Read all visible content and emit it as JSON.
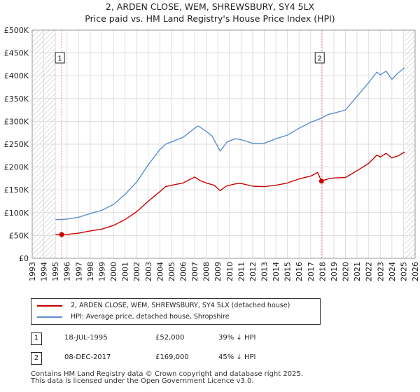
{
  "chart_data": {
    "type": "line",
    "title": "2, ARDEN CLOSE, WEM, SHREWSBURY, SY4 5LX",
    "subtitle": "Price paid vs. HM Land Registry's House Price Index (HPI)",
    "x_ticks": [
      "1993",
      "1994",
      "1995",
      "1996",
      "1997",
      "1998",
      "1999",
      "2000",
      "2001",
      "2002",
      "2003",
      "2004",
      "2005",
      "2006",
      "2007",
      "2008",
      "2009",
      "2010",
      "2011",
      "2012",
      "2013",
      "2014",
      "2015",
      "2016",
      "2017",
      "2018",
      "2019",
      "2020",
      "2021",
      "2022",
      "2023",
      "2024",
      "2025",
      "2026"
    ],
    "y_ticks": [
      "£0",
      "£50K",
      "£100K",
      "£150K",
      "£200K",
      "£250K",
      "£300K",
      "£350K",
      "£400K",
      "£450K",
      "£500K"
    ],
    "xlim": [
      1993,
      2026
    ],
    "ylim": [
      0,
      500000
    ],
    "hatched_ranges": [
      [
        1993,
        1995.0
      ],
      [
        2025.1,
        2026
      ]
    ],
    "series": [
      {
        "name": "2, ARDEN CLOSE, WEM, SHREWSBURY, SY4 5LX (detached house)",
        "color": "#cc0000",
        "points": [
          [
            1995.0,
            52000
          ],
          [
            1995.54,
            52000
          ],
          [
            1996.0,
            52500
          ],
          [
            1997.0,
            55000
          ],
          [
            1998.0,
            60000
          ],
          [
            1999.0,
            64000
          ],
          [
            2000.0,
            72000
          ],
          [
            2001.0,
            85000
          ],
          [
            2002.0,
            102000
          ],
          [
            2003.0,
            125000
          ],
          [
            2004.0,
            146000
          ],
          [
            2004.5,
            157000
          ],
          [
            2005.0,
            160000
          ],
          [
            2006.0,
            165000
          ],
          [
            2007.0,
            178000
          ],
          [
            2007.5,
            170000
          ],
          [
            2008.0,
            165000
          ],
          [
            2008.7,
            160000
          ],
          [
            2009.2,
            148000
          ],
          [
            2009.7,
            158000
          ],
          [
            2010.5,
            163000
          ],
          [
            2011.0,
            164000
          ],
          [
            2012.0,
            158000
          ],
          [
            2013.0,
            157000
          ],
          [
            2014.0,
            160000
          ],
          [
            2015.0,
            165000
          ],
          [
            2016.0,
            174000
          ],
          [
            2017.0,
            180000
          ],
          [
            2017.6,
            188000
          ],
          [
            2017.93,
            169000
          ],
          [
            2018.5,
            174000
          ],
          [
            2019.0,
            176000
          ],
          [
            2020.0,
            177000
          ],
          [
            2021.0,
            192000
          ],
          [
            2022.0,
            208000
          ],
          [
            2022.7,
            226000
          ],
          [
            2023.0,
            222000
          ],
          [
            2023.5,
            230000
          ],
          [
            2024.0,
            220000
          ],
          [
            2024.5,
            224000
          ],
          [
            2025.1,
            233000
          ]
        ]
      },
      {
        "name": "HPI: Average price, detached house, Shropshire",
        "color": "#5b8fd0",
        "points": [
          [
            1995.0,
            85000
          ],
          [
            1995.54,
            85000
          ],
          [
            1996.0,
            86000
          ],
          [
            1997.0,
            90000
          ],
          [
            1998.0,
            98000
          ],
          [
            1999.0,
            105000
          ],
          [
            2000.0,
            118000
          ],
          [
            2001.0,
            140000
          ],
          [
            2002.0,
            167000
          ],
          [
            2003.0,
            205000
          ],
          [
            2004.0,
            238000
          ],
          [
            2004.5,
            250000
          ],
          [
            2005.0,
            255000
          ],
          [
            2006.0,
            265000
          ],
          [
            2007.0,
            285000
          ],
          [
            2007.3,
            290000
          ],
          [
            2008.0,
            278000
          ],
          [
            2008.5,
            268000
          ],
          [
            2009.2,
            235000
          ],
          [
            2009.8,
            255000
          ],
          [
            2010.5,
            262000
          ],
          [
            2011.0,
            260000
          ],
          [
            2012.0,
            252000
          ],
          [
            2013.0,
            252000
          ],
          [
            2014.0,
            262000
          ],
          [
            2015.0,
            270000
          ],
          [
            2016.0,
            285000
          ],
          [
            2017.0,
            298000
          ],
          [
            2017.93,
            307000
          ],
          [
            2018.5,
            315000
          ],
          [
            2019.0,
            318000
          ],
          [
            2020.0,
            325000
          ],
          [
            2021.0,
            355000
          ],
          [
            2022.0,
            385000
          ],
          [
            2022.7,
            408000
          ],
          [
            2023.0,
            402000
          ],
          [
            2023.5,
            410000
          ],
          [
            2024.0,
            392000
          ],
          [
            2024.5,
            405000
          ],
          [
            2025.1,
            418000
          ]
        ]
      }
    ],
    "sales": [
      {
        "label": "1",
        "x": 1995.54,
        "y": 52000
      },
      {
        "label": "2",
        "x": 2017.93,
        "y": 169000
      }
    ]
  },
  "legend": {
    "series1": "2, ARDEN CLOSE, WEM, SHREWSBURY, SY4 5LX (detached house)",
    "series2": "HPI: Average price, detached house, Shropshire"
  },
  "sales_table": [
    {
      "num": "1",
      "date": "18-JUL-1995",
      "price": "£52,000",
      "hpi": "39% ↓ HPI"
    },
    {
      "num": "2",
      "date": "08-DEC-2017",
      "price": "£169,000",
      "hpi": "45% ↓ HPI"
    }
  ],
  "footer": {
    "line1": "Contains HM Land Registry data © Crown copyright and database right 2025.",
    "line2": "This data is licensed under the Open Government Licence v3.0."
  },
  "colors": {
    "red": "#cc0000",
    "blue": "#5b8fd0",
    "grid": "#dddddd"
  }
}
